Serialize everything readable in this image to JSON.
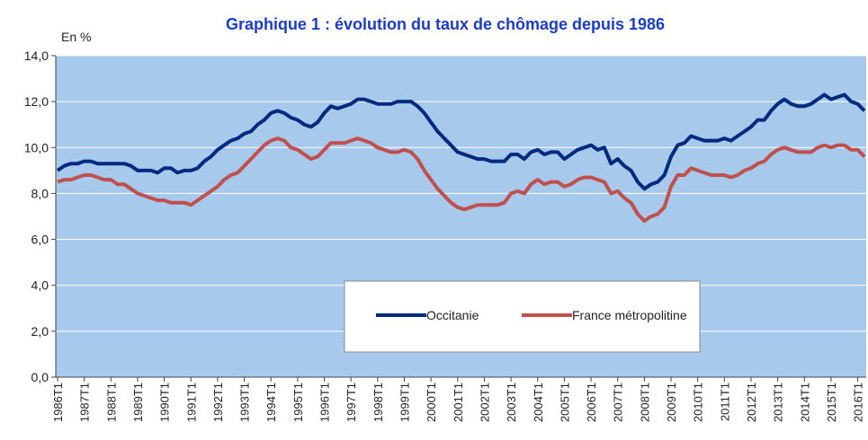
{
  "chart_data": {
    "type": "line",
    "title": "Graphique 1 : évolution du taux de chômage depuis 1986",
    "y_label": "En %",
    "categories": [
      "1986T1",
      null,
      null,
      null,
      "1987T1",
      null,
      null,
      null,
      "1988T1",
      null,
      null,
      null,
      "1989T1",
      null,
      null,
      null,
      "1990T1",
      null,
      null,
      null,
      "1991T1",
      null,
      null,
      null,
      "1992T1",
      null,
      null,
      null,
      "1993T1",
      null,
      null,
      null,
      "1994T1",
      null,
      null,
      null,
      "1995T1",
      null,
      null,
      null,
      "1996T1",
      null,
      null,
      null,
      "1997T1",
      null,
      null,
      null,
      "1998T1",
      null,
      null,
      null,
      "1999T1",
      null,
      null,
      null,
      "2000T1",
      null,
      null,
      null,
      "2001T1",
      null,
      null,
      null,
      "2002T1",
      null,
      null,
      null,
      "2003T1",
      null,
      null,
      null,
      "2004T1",
      null,
      null,
      null,
      "2005T1",
      null,
      null,
      null,
      "2006T1",
      null,
      null,
      null,
      "2007T1",
      null,
      null,
      null,
      "2008T1",
      null,
      null,
      null,
      "2009T1",
      null,
      null,
      null,
      "2010T1",
      null,
      null,
      null,
      "2011T1",
      null,
      null,
      null,
      "2012T1",
      null,
      null,
      null,
      "2013T1",
      null,
      null,
      null,
      "2014T1",
      null,
      null,
      null,
      "2015T1",
      null,
      null,
      null,
      "2016T1",
      null
    ],
    "series": [
      {
        "name": "Occitanie",
        "color": "#002a80",
        "values": [
          9.0,
          9.2,
          9.3,
          9.3,
          9.4,
          9.4,
          9.3,
          9.3,
          9.3,
          9.3,
          9.3,
          9.2,
          9.0,
          9.0,
          9.0,
          8.9,
          9.1,
          9.1,
          8.9,
          9.0,
          9.0,
          9.1,
          9.4,
          9.6,
          9.9,
          10.1,
          10.3,
          10.4,
          10.6,
          10.7,
          11.0,
          11.2,
          11.5,
          11.6,
          11.5,
          11.3,
          11.2,
          11.0,
          10.9,
          11.1,
          11.5,
          11.8,
          11.7,
          11.8,
          11.9,
          12.1,
          12.1,
          12.0,
          11.9,
          11.9,
          11.9,
          12.0,
          12.0,
          12.0,
          11.8,
          11.5,
          11.1,
          10.7,
          10.4,
          10.1,
          9.8,
          9.7,
          9.6,
          9.5,
          9.5,
          9.4,
          9.4,
          9.4,
          9.7,
          9.7,
          9.5,
          9.8,
          9.9,
          9.7,
          9.8,
          9.8,
          9.5,
          9.7,
          9.9,
          10.0,
          10.1,
          9.9,
          10.0,
          9.3,
          9.5,
          9.2,
          9.0,
          8.5,
          8.2,
          8.4,
          8.5,
          8.8,
          9.6,
          10.1,
          10.2,
          10.5,
          10.4,
          10.3,
          10.3,
          10.3,
          10.4,
          10.3,
          10.5,
          10.7,
          10.9,
          11.2,
          11.2,
          11.6,
          11.9,
          12.1,
          11.9,
          11.8,
          11.8,
          11.9,
          12.1,
          12.3,
          12.1,
          12.2,
          12.3,
          12.0,
          11.9,
          11.6
        ]
      },
      {
        "name": "France métropolitine",
        "color": "#c0504d",
        "values": [
          8.5,
          8.6,
          8.6,
          8.7,
          8.8,
          8.8,
          8.7,
          8.6,
          8.6,
          8.4,
          8.4,
          8.2,
          8.0,
          7.9,
          7.8,
          7.7,
          7.7,
          7.6,
          7.6,
          7.6,
          7.5,
          7.7,
          7.9,
          8.1,
          8.3,
          8.6,
          8.8,
          8.9,
          9.2,
          9.5,
          9.8,
          10.1,
          10.3,
          10.4,
          10.3,
          10.0,
          9.9,
          9.7,
          9.5,
          9.6,
          9.9,
          10.2,
          10.2,
          10.2,
          10.3,
          10.4,
          10.3,
          10.2,
          10.0,
          9.9,
          9.8,
          9.8,
          9.9,
          9.8,
          9.5,
          9.0,
          8.6,
          8.2,
          7.9,
          7.6,
          7.4,
          7.3,
          7.4,
          7.5,
          7.5,
          7.5,
          7.5,
          7.6,
          8.0,
          8.1,
          8.0,
          8.4,
          8.6,
          8.4,
          8.5,
          8.5,
          8.3,
          8.4,
          8.6,
          8.7,
          8.7,
          8.6,
          8.5,
          8.0,
          8.1,
          7.8,
          7.6,
          7.1,
          6.8,
          7.0,
          7.1,
          7.4,
          8.3,
          8.8,
          8.8,
          9.1,
          9.0,
          8.9,
          8.8,
          8.8,
          8.8,
          8.7,
          8.8,
          9.0,
          9.1,
          9.3,
          9.4,
          9.7,
          9.9,
          10.0,
          9.9,
          9.8,
          9.8,
          9.8,
          10.0,
          10.1,
          10.0,
          10.1,
          10.1,
          9.9,
          9.9,
          9.6
        ]
      }
    ],
    "ylim": [
      0,
      14
    ],
    "yticks": [
      {
        "value": 0,
        "label": "0,0"
      },
      {
        "value": 2,
        "label": "2,0"
      },
      {
        "value": 4,
        "label": "4,0"
      },
      {
        "value": 6,
        "label": "6,0"
      },
      {
        "value": 8,
        "label": "8,0"
      },
      {
        "value": 10,
        "label": "10,0"
      },
      {
        "value": 12,
        "label": "12,0"
      },
      {
        "value": 14,
        "label": "14,0"
      }
    ],
    "grid": true,
    "background": "#a6c9ec"
  }
}
